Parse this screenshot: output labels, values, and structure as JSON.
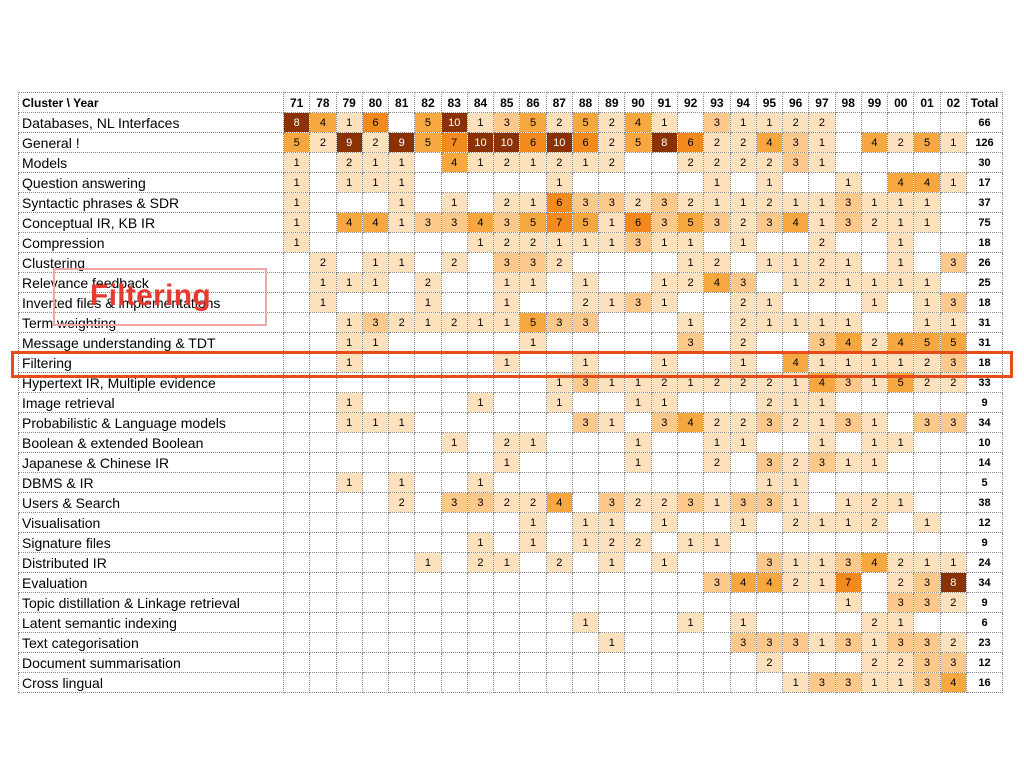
{
  "chart_data": {
    "type": "heatmap",
    "title": "",
    "row_header": "Cluster \\ Year",
    "total_label": "Total",
    "columns": [
      "71",
      "78",
      "79",
      "80",
      "81",
      "82",
      "83",
      "84",
      "85",
      "86",
      "87",
      "88",
      "89",
      "90",
      "91",
      "92",
      "93",
      "94",
      "95",
      "96",
      "97",
      "98",
      "99",
      "00",
      "01",
      "02"
    ],
    "rows": [
      {
        "name": "Databases, NL Interfaces",
        "values": [
          8,
          4,
          1,
          6,
          null,
          5,
          10,
          1,
          3,
          5,
          2,
          5,
          2,
          4,
          1,
          null,
          3,
          1,
          1,
          2,
          2,
          null,
          null,
          null,
          null,
          null
        ],
        "total": 66
      },
      {
        "name": "General !",
        "values": [
          5,
          2,
          9,
          2,
          9,
          5,
          7,
          10,
          10,
          6,
          10,
          6,
          2,
          5,
          8,
          6,
          2,
          2,
          4,
          3,
          1,
          null,
          4,
          2,
          5,
          1
        ],
        "total": 126
      },
      {
        "name": "Models",
        "values": [
          1,
          null,
          2,
          1,
          1,
          null,
          4,
          1,
          2,
          1,
          2,
          1,
          2,
          null,
          null,
          2,
          2,
          2,
          2,
          3,
          1,
          null,
          null,
          null,
          null,
          null
        ],
        "total": 30
      },
      {
        "name": "Question answering",
        "values": [
          1,
          null,
          1,
          1,
          1,
          null,
          null,
          null,
          null,
          null,
          1,
          null,
          null,
          null,
          null,
          null,
          1,
          null,
          1,
          null,
          null,
          1,
          null,
          4,
          4,
          1
        ],
        "total": 17
      },
      {
        "name": "Syntactic phrases & SDR",
        "values": [
          1,
          null,
          null,
          null,
          1,
          null,
          1,
          null,
          2,
          1,
          6,
          3,
          3,
          2,
          3,
          2,
          1,
          1,
          2,
          1,
          1,
          3,
          1,
          1,
          1,
          null
        ],
        "total": 37
      },
      {
        "name": "Conceptual IR, KB IR",
        "values": [
          1,
          null,
          4,
          4,
          1,
          3,
          3,
          4,
          3,
          5,
          7,
          5,
          1,
          6,
          3,
          5,
          3,
          2,
          3,
          4,
          1,
          3,
          2,
          1,
          1,
          null
        ],
        "total": 75
      },
      {
        "name": "Compression",
        "values": [
          1,
          null,
          null,
          null,
          null,
          null,
          null,
          1,
          2,
          2,
          1,
          1,
          1,
          3,
          1,
          1,
          null,
          1,
          null,
          null,
          2,
          null,
          null,
          1,
          null,
          null
        ],
        "total": 18
      },
      {
        "name": "Clustering",
        "values": [
          null,
          2,
          null,
          1,
          1,
          null,
          2,
          null,
          3,
          3,
          2,
          null,
          null,
          null,
          null,
          1,
          2,
          null,
          1,
          1,
          2,
          1,
          null,
          1,
          null,
          3
        ],
        "total": 26
      },
      {
        "name": "Relevance feedback",
        "values": [
          null,
          1,
          1,
          1,
          null,
          2,
          null,
          null,
          1,
          1,
          null,
          1,
          null,
          null,
          1,
          2,
          4,
          3,
          null,
          1,
          2,
          1,
          1,
          1,
          1,
          null
        ],
        "total": 25
      },
      {
        "name": "Inverted files & implementations",
        "values": [
          null,
          1,
          null,
          null,
          null,
          1,
          null,
          null,
          1,
          null,
          null,
          2,
          1,
          3,
          1,
          null,
          null,
          2,
          1,
          null,
          null,
          null,
          1,
          null,
          1,
          3
        ],
        "total": 18
      },
      {
        "name": "Term weighting",
        "values": [
          null,
          null,
          1,
          3,
          2,
          1,
          2,
          1,
          1,
          5,
          3,
          3,
          null,
          null,
          null,
          1,
          null,
          2,
          1,
          1,
          1,
          1,
          null,
          null,
          1,
          1
        ],
        "total": 31
      },
      {
        "name": "Message understanding & TDT",
        "values": [
          null,
          null,
          1,
          1,
          null,
          null,
          null,
          null,
          null,
          1,
          null,
          null,
          null,
          null,
          null,
          3,
          null,
          2,
          null,
          null,
          3,
          4,
          2,
          4,
          5,
          5
        ],
        "total": 31
      },
      {
        "name": "Filtering",
        "values": [
          null,
          null,
          1,
          null,
          null,
          null,
          null,
          null,
          1,
          null,
          null,
          1,
          null,
          null,
          1,
          null,
          null,
          1,
          null,
          4,
          1,
          1,
          1,
          1,
          2,
          3
        ],
        "total": 18
      },
      {
        "name": "Hypertext IR, Multiple evidence",
        "values": [
          null,
          null,
          null,
          null,
          null,
          null,
          null,
          null,
          null,
          null,
          1,
          3,
          1,
          1,
          2,
          1,
          2,
          2,
          2,
          1,
          4,
          3,
          1,
          5,
          2,
          2
        ],
        "total": 33
      },
      {
        "name": "Image retrieval",
        "values": [
          null,
          null,
          1,
          null,
          null,
          null,
          null,
          1,
          null,
          null,
          1,
          null,
          null,
          1,
          1,
          null,
          null,
          null,
          2,
          1,
          1,
          null,
          null,
          null,
          null,
          null
        ],
        "total": 9
      },
      {
        "name": "Probabilistic & Language models",
        "values": [
          null,
          null,
          1,
          1,
          1,
          null,
          null,
          null,
          null,
          null,
          null,
          3,
          1,
          null,
          3,
          4,
          2,
          2,
          3,
          2,
          1,
          3,
          1,
          null,
          3,
          3
        ],
        "total": 34
      },
      {
        "name": "Boolean & extended Boolean",
        "values": [
          null,
          null,
          null,
          null,
          null,
          null,
          1,
          null,
          2,
          1,
          null,
          null,
          null,
          1,
          null,
          null,
          1,
          1,
          null,
          null,
          1,
          null,
          1,
          1,
          null,
          null
        ],
        "total": 10
      },
      {
        "name": "Japanese & Chinese IR",
        "values": [
          null,
          null,
          null,
          null,
          null,
          null,
          null,
          null,
          1,
          null,
          null,
          null,
          null,
          1,
          null,
          null,
          2,
          null,
          3,
          2,
          3,
          1,
          1,
          null,
          null,
          null
        ],
        "total": 14
      },
      {
        "name": "DBMS & IR",
        "values": [
          null,
          null,
          1,
          null,
          1,
          null,
          null,
          1,
          null,
          null,
          null,
          null,
          null,
          null,
          null,
          null,
          null,
          null,
          1,
          1,
          null,
          null,
          null,
          null,
          null,
          null
        ],
        "total": 5
      },
      {
        "name": "Users & Search",
        "values": [
          null,
          null,
          null,
          null,
          2,
          null,
          3,
          3,
          2,
          2,
          4,
          null,
          3,
          2,
          2,
          3,
          1,
          3,
          3,
          1,
          null,
          1,
          2,
          1,
          null,
          null
        ],
        "total": 38
      },
      {
        "name": "Visualisation",
        "values": [
          null,
          null,
          null,
          null,
          null,
          null,
          null,
          null,
          null,
          1,
          null,
          1,
          1,
          null,
          1,
          null,
          null,
          1,
          null,
          2,
          1,
          1,
          2,
          null,
          1,
          null
        ],
        "total": 12
      },
      {
        "name": "Signature files",
        "values": [
          null,
          null,
          null,
          null,
          null,
          null,
          null,
          1,
          null,
          1,
          null,
          1,
          2,
          2,
          null,
          1,
          1,
          null,
          null,
          null,
          null,
          null,
          null,
          null,
          null,
          null
        ],
        "total": 9
      },
      {
        "name": "Distributed IR",
        "values": [
          null,
          null,
          null,
          null,
          null,
          1,
          null,
          2,
          1,
          null,
          2,
          null,
          1,
          null,
          1,
          null,
          null,
          null,
          3,
          1,
          1,
          3,
          4,
          2,
          1,
          1
        ],
        "total": 24
      },
      {
        "name": "Evaluation",
        "values": [
          null,
          null,
          null,
          null,
          null,
          null,
          null,
          null,
          null,
          null,
          null,
          null,
          null,
          null,
          null,
          null,
          3,
          4,
          4,
          2,
          1,
          7,
          null,
          2,
          3,
          8
        ],
        "total": 34
      },
      {
        "name": "Topic distillation & Linkage retrieval",
        "values": [
          null,
          null,
          null,
          null,
          null,
          null,
          null,
          null,
          null,
          null,
          null,
          null,
          null,
          null,
          null,
          null,
          null,
          null,
          null,
          null,
          null,
          1,
          null,
          3,
          3,
          2
        ],
        "total": 9
      },
      {
        "name": "Latent semantic indexing",
        "values": [
          null,
          null,
          null,
          null,
          null,
          null,
          null,
          null,
          null,
          null,
          null,
          1,
          null,
          null,
          null,
          1,
          null,
          1,
          null,
          null,
          null,
          null,
          2,
          1,
          null,
          null
        ],
        "total": 6
      },
      {
        "name": "Text categorisation",
        "values": [
          null,
          null,
          null,
          null,
          null,
          null,
          null,
          null,
          null,
          null,
          null,
          null,
          1,
          null,
          null,
          null,
          null,
          3,
          3,
          3,
          1,
          3,
          1,
          3,
          3,
          2
        ],
        "total": 23
      },
      {
        "name": "Document summarisation",
        "values": [
          null,
          null,
          null,
          null,
          null,
          null,
          null,
          null,
          null,
          null,
          null,
          null,
          null,
          null,
          null,
          null,
          null,
          null,
          2,
          null,
          null,
          null,
          2,
          2,
          3,
          3
        ],
        "total": 12
      },
      {
        "name": "Cross lingual",
        "values": [
          null,
          null,
          null,
          null,
          null,
          null,
          null,
          null,
          null,
          null,
          null,
          null,
          null,
          null,
          null,
          null,
          null,
          null,
          null,
          1,
          3,
          3,
          1,
          1,
          3,
          4
        ],
        "total": 16
      }
    ],
    "color_scale": {
      "levels": [
        {
          "min": 1,
          "max": 2,
          "color": "#fde1bd"
        },
        {
          "min": 3,
          "max": 3,
          "color": "#fcc98b"
        },
        {
          "min": 4,
          "max": 5,
          "color": "#f7a740"
        },
        {
          "min": 6,
          "max": 7,
          "color": "#f28a1e"
        },
        {
          "min": 8,
          "max": 10,
          "color": "#8b3205"
        }
      ],
      "dark_text_color": "#ffffff"
    }
  },
  "callout": {
    "label": "Filtering"
  },
  "highlight": {
    "row": "Filtering",
    "color": "#e84b1a"
  }
}
